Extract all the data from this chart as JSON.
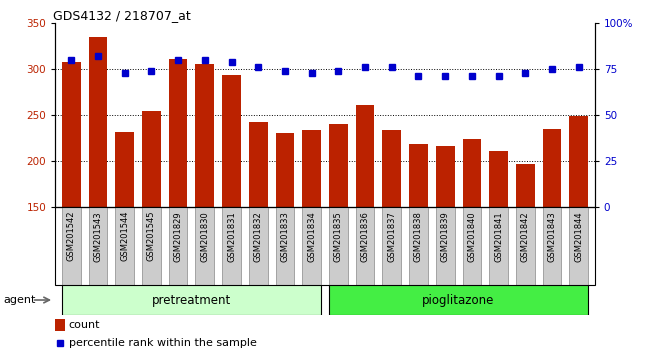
{
  "title": "GDS4132 / 218707_at",
  "categories": [
    "GSM201542",
    "GSM201543",
    "GSM201544",
    "GSM201545",
    "GSM201829",
    "GSM201830",
    "GSM201831",
    "GSM201832",
    "GSM201833",
    "GSM201834",
    "GSM201835",
    "GSM201836",
    "GSM201837",
    "GSM201838",
    "GSM201839",
    "GSM201840",
    "GSM201841",
    "GSM201842",
    "GSM201843",
    "GSM201844"
  ],
  "bar_values": [
    308,
    335,
    232,
    254,
    311,
    305,
    294,
    242,
    230,
    234,
    240,
    261,
    234,
    219,
    216,
    224,
    211,
    197,
    235,
    249
  ],
  "dot_values": [
    80,
    82,
    73,
    74,
    80,
    80,
    79,
    76,
    74,
    73,
    74,
    76,
    76,
    71,
    71,
    71,
    71,
    73,
    75,
    76
  ],
  "bar_color": "#bb2200",
  "dot_color": "#0000cc",
  "ylim_left": [
    150,
    350
  ],
  "ylim_right": [
    0,
    100
  ],
  "yticks_left": [
    150,
    200,
    250,
    300,
    350
  ],
  "yticks_right": [
    0,
    25,
    50,
    75,
    100
  ],
  "ytick_labels_right": [
    "0",
    "25",
    "50",
    "75",
    "100%"
  ],
  "grid_values": [
    200,
    250,
    300
  ],
  "pretreatment_label": "pretreatment",
  "pioglitazone_label": "pioglitazone",
  "agent_label": "agent",
  "legend_count": "count",
  "legend_percentile": "percentile rank within the sample",
  "pretreatment_color": "#ccffcc",
  "pioglitazone_color": "#44ee44",
  "background_color": "#ffffff",
  "tick_label_bg": "#cccccc",
  "n_pretreatment": 10,
  "n_pioglitazone": 10
}
